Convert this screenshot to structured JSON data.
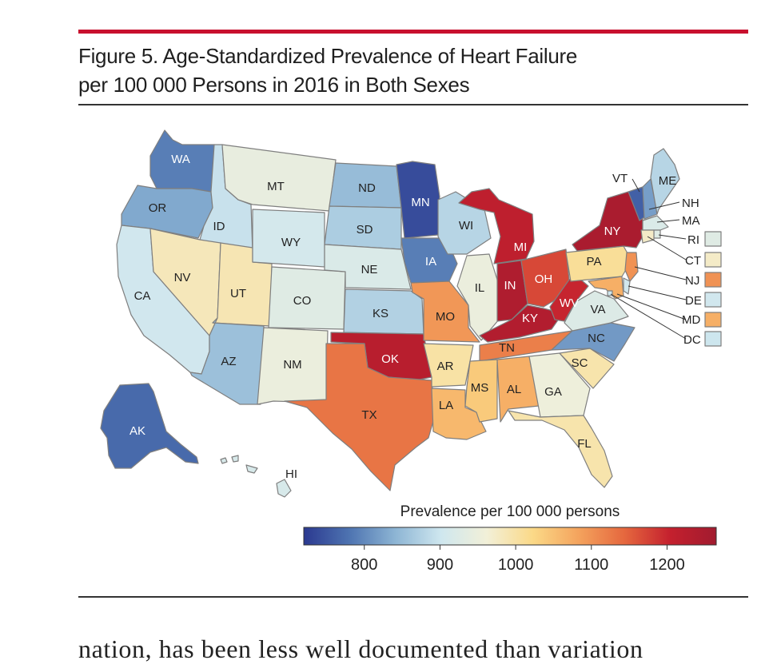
{
  "figure": {
    "title_line1": "Figure 5. Age-Standardized Prevalence of Heart Failure",
    "title_line2": "per 100 000 Persons in 2016 in Both Sexes"
  },
  "body_text": "nation, has been less well documented than variation",
  "colors": {
    "scale": [
      "#2b3990",
      "#4e74b1",
      "#8db5d4",
      "#cfe7ef",
      "#f2f0d8",
      "#fbd987",
      "#f4a35d",
      "#e5673e",
      "#c4202e",
      "#a11b2f"
    ],
    "state_border": "#7f7f7f",
    "accent_rule": "#c8102e"
  },
  "chart_data": {
    "type": "choropleth",
    "title": "Figure 5. Age-Standardized Prevalence of Heart Failure per 100 000 Persons in 2016 in Both Sexes",
    "legend_title": "Prevalence per 100 000 persons",
    "scale_range": [
      720,
      1265
    ],
    "ticks": [
      800,
      900,
      1000,
      1100,
      1200
    ],
    "states": [
      {
        "code": "WA",
        "value": 790
      },
      {
        "code": "OR",
        "value": 830
      },
      {
        "code": "CA",
        "value": 905
      },
      {
        "code": "ID",
        "value": 895
      },
      {
        "code": "NV",
        "value": 985
      },
      {
        "code": "UT",
        "value": 990
      },
      {
        "code": "AZ",
        "value": 855
      },
      {
        "code": "MT",
        "value": 945
      },
      {
        "code": "WY",
        "value": 910
      },
      {
        "code": "CO",
        "value": 930
      },
      {
        "code": "NM",
        "value": 950
      },
      {
        "code": "ND",
        "value": 850
      },
      {
        "code": "SD",
        "value": 870
      },
      {
        "code": "NE",
        "value": 920
      },
      {
        "code": "KS",
        "value": 875
      },
      {
        "code": "OK",
        "value": 1225
      },
      {
        "code": "TX",
        "value": 1130
      },
      {
        "code": "MN",
        "value": 740
      },
      {
        "code": "IA",
        "value": 790
      },
      {
        "code": "MO",
        "value": 1095
      },
      {
        "code": "AR",
        "value": 1000
      },
      {
        "code": "LA",
        "value": 1060
      },
      {
        "code": "WI",
        "value": 880
      },
      {
        "code": "IL",
        "value": 950
      },
      {
        "code": "MI",
        "value": 1215
      },
      {
        "code": "IN",
        "value": 1240
      },
      {
        "code": "OH",
        "value": 1170
      },
      {
        "code": "KY",
        "value": 1235
      },
      {
        "code": "TN",
        "value": 1120
      },
      {
        "code": "MS",
        "value": 1040
      },
      {
        "code": "AL",
        "value": 1070
      },
      {
        "code": "GA",
        "value": 955
      },
      {
        "code": "FL",
        "value": 995
      },
      {
        "code": "SC",
        "value": 995
      },
      {
        "code": "NC",
        "value": 815
      },
      {
        "code": "VA",
        "value": 925
      },
      {
        "code": "WV",
        "value": 1200
      },
      {
        "code": "PA",
        "value": 1010
      },
      {
        "code": "NY",
        "value": 1250
      },
      {
        "code": "VT",
        "value": 760
      },
      {
        "code": "NH",
        "value": 820
      },
      {
        "code": "ME",
        "value": 880
      },
      {
        "code": "MA",
        "value": 920
      },
      {
        "code": "RI",
        "value": 930
      },
      {
        "code": "CT",
        "value": 975
      },
      {
        "code": "NJ",
        "value": 1100
      },
      {
        "code": "DE",
        "value": 905
      },
      {
        "code": "MD",
        "value": 1070
      },
      {
        "code": "DC",
        "value": 900
      },
      {
        "code": "AK",
        "value": 770
      },
      {
        "code": "HI",
        "value": 915
      }
    ]
  }
}
